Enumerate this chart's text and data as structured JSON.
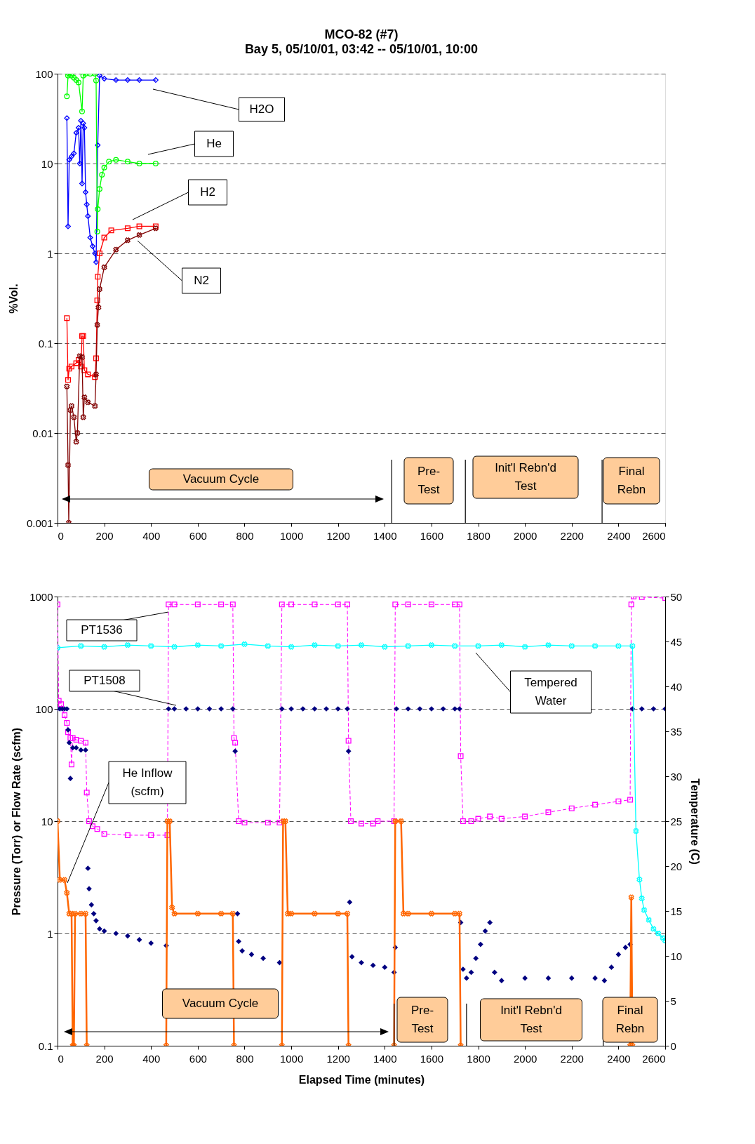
{
  "chart_data": [
    {
      "type": "line",
      "title": "MCO-82 (#7)",
      "subtitle": "Bay 5, 05/10/01, 03:42 -- 05/10/01, 10:00",
      "ylabel": "%Vol.",
      "log": "y",
      "grid": "y",
      "xlim": [
        0,
        2600
      ],
      "xticks": [
        0,
        200,
        400,
        600,
        800,
        1000,
        1200,
        1400,
        1600,
        1800,
        2000,
        2200,
        2400,
        2600
      ],
      "ylim": [
        0.001,
        100
      ],
      "yticks": [
        0.001,
        0.01,
        0.1,
        1,
        10,
        100
      ],
      "series": [
        {
          "name": "H2O",
          "color": "#0000ff",
          "marker": "diamond",
          "x": [
            40,
            45,
            50,
            60,
            70,
            80,
            90,
            95,
            100,
            105,
            110,
            115,
            120,
            125,
            130,
            140,
            150,
            160,
            165,
            172,
            180,
            200,
            250,
            300,
            350,
            420
          ],
          "values": [
            32,
            2.0,
            11,
            12,
            13,
            22,
            25,
            10,
            30,
            6,
            28,
            25,
            4.8,
            3.5,
            2.6,
            1.5,
            1.2,
            1.0,
            0.8,
            16,
            95,
            88,
            85,
            85,
            85,
            85
          ]
        },
        {
          "name": "He",
          "color": "#00ff00",
          "marker": "circle",
          "x": [
            40,
            45,
            50,
            60,
            70,
            80,
            90,
            105,
            110,
            120,
            140,
            160,
            165,
            170,
            172,
            180,
            190,
            200,
            220,
            250,
            300,
            350,
            420
          ],
          "values": [
            56,
            95,
            100,
            95,
            90,
            85,
            80,
            38,
            95,
            100,
            100,
            100,
            84,
            1.75,
            3.1,
            5.2,
            7.5,
            9,
            10.5,
            11,
            10.5,
            10,
            10
          ]
        },
        {
          "name": "H2",
          "color": "#ff0000",
          "marker": "square",
          "x": [
            40,
            45,
            50,
            60,
            80,
            90,
            100,
            105,
            110,
            115,
            130,
            160,
            165,
            170,
            172,
            180,
            200,
            230,
            300,
            350,
            420
          ],
          "values": [
            0.19,
            0.039,
            0.052,
            0.055,
            0.06,
            0.065,
            0.055,
            0.12,
            0.12,
            0.05,
            0.045,
            0.042,
            0.068,
            0.3,
            0.55,
            1.0,
            1.5,
            1.8,
            1.9,
            2.0,
            2.0
          ]
        },
        {
          "name": "N2",
          "color": "#800000",
          "marker": "cross",
          "x": [
            40,
            45,
            48,
            55,
            60,
            70,
            80,
            85,
            95,
            105,
            110,
            115,
            130,
            160,
            165,
            170,
            175,
            180,
            200,
            250,
            300,
            350,
            420
          ],
          "values": [
            0.033,
            0.0044,
            0.001,
            0.018,
            0.02,
            0.015,
            0.008,
            0.01,
            0.072,
            0.07,
            0.015,
            0.025,
            0.022,
            0.02,
            0.045,
            0.16,
            0.25,
            0.4,
            0.7,
            1.1,
            1.4,
            1.6,
            1.9
          ]
        }
      ],
      "ref_lines": [
        {
          "axis": "x",
          "value": 1430
        },
        {
          "axis": "x",
          "value": 1745
        },
        {
          "axis": "x",
          "value": 2330
        }
      ],
      "annotations": [
        "Vacuum Cycle",
        "Pre-\nTest",
        "Init'l Rebn'd\nTest",
        "Final\nRebn"
      ]
    },
    {
      "type": "line",
      "xlabel": "Elapsed Time (minutes)",
      "ylabel": "Pressure (Torr) or Flow Rate (scfm)",
      "y2label": "Temperature (C)",
      "log": "y",
      "grid": "y",
      "xlim": [
        0,
        2600
      ],
      "xticks": [
        0,
        200,
        400,
        600,
        800,
        1000,
        1200,
        1400,
        1600,
        1800,
        2000,
        2200,
        2400,
        2600
      ],
      "ylim": [
        0.1,
        1000
      ],
      "yticks": [
        0.1,
        1,
        10,
        100,
        1000
      ],
      "y2lim": [
        0,
        50
      ],
      "y2ticks": [
        0,
        5,
        10,
        15,
        20,
        25,
        30,
        35,
        40,
        45,
        50
      ],
      "series": [
        {
          "name": "PT1536",
          "color": "#ff00ff",
          "marker": "square",
          "line_style": "dashed",
          "x": [
            0,
            5,
            15,
            30,
            40,
            45,
            55,
            60,
            65,
            80,
            100,
            120,
            125,
            135,
            150,
            170,
            200,
            300,
            400,
            470,
            475,
            500,
            600,
            700,
            750,
            755,
            760,
            775,
            800,
            900,
            950,
            960,
            1000,
            1100,
            1200,
            1240,
            1245,
            1255,
            1300,
            1350,
            1370,
            1440,
            1445,
            1500,
            1600,
            1700,
            1720,
            1725,
            1735,
            1770,
            1800,
            1850,
            1900,
            2000,
            2100,
            2200,
            2300,
            2400,
            2450,
            2455,
            2465,
            2500,
            2600
          ],
          "values": [
            850,
            118,
            110,
            88,
            75,
            62,
            55,
            32,
            55,
            53,
            52,
            50,
            18,
            10,
            9,
            8.5,
            7.7,
            7.5,
            7.5,
            7.5,
            850,
            850,
            850,
            850,
            850,
            55,
            50,
            10,
            9.7,
            9.7,
            9.7,
            850,
            850,
            850,
            850,
            850,
            52,
            10,
            9.5,
            9.5,
            10,
            10,
            850,
            850,
            850,
            850,
            850,
            38,
            10,
            10,
            10.5,
            11,
            10.5,
            11,
            12,
            13,
            14,
            15,
            15.5,
            850,
            1000,
            990,
            970
          ]
        },
        {
          "name": "PT1508",
          "type": "scatter",
          "color": "#000080",
          "marker": "diamond",
          "x": [
            0,
            10,
            20,
            30,
            40,
            45,
            50,
            55,
            65,
            80,
            100,
            120,
            130,
            135,
            145,
            155,
            165,
            180,
            200,
            250,
            300,
            350,
            400,
            465,
            475,
            500,
            550,
            600,
            650,
            700,
            750,
            760,
            770,
            775,
            790,
            830,
            880,
            950,
            960,
            1000,
            1050,
            1100,
            1150,
            1200,
            1240,
            1245,
            1250,
            1260,
            1300,
            1350,
            1400,
            1440,
            1445,
            1450,
            1500,
            1550,
            1600,
            1650,
            1700,
            1720,
            1725,
            1735,
            1750,
            1770,
            1790,
            1810,
            1830,
            1850,
            1870,
            1900,
            2000,
            2100,
            2200,
            2300,
            2340,
            2370,
            2400,
            2430,
            2450,
            2460,
            2500,
            2550,
            2600
          ],
          "values": [
            100,
            100,
            100,
            100,
            100,
            65,
            50,
            24,
            45,
            45,
            43,
            43,
            3.8,
            2.5,
            1.8,
            1.5,
            1.3,
            1.1,
            1.05,
            1.0,
            0.95,
            0.88,
            0.82,
            0.78,
            100,
            100,
            100,
            100,
            100,
            100,
            100,
            42,
            1.5,
            0.85,
            0.7,
            0.65,
            0.6,
            0.55,
            100,
            100,
            100,
            100,
            100,
            100,
            100,
            42,
            1.9,
            0.62,
            0.55,
            0.52,
            0.5,
            0.45,
            0.75,
            100,
            100,
            100,
            100,
            100,
            100,
            100,
            1.25,
            0.48,
            0.4,
            0.45,
            0.6,
            0.8,
            1.05,
            1.25,
            0.45,
            0.38,
            0.4,
            0.4,
            0.4,
            0.4,
            0.38,
            0.5,
            0.65,
            0.75,
            0.8,
            100,
            100,
            100,
            100
          ]
        },
        {
          "name": "Tempered\nWater",
          "axis": "y2",
          "color": "#00ffff",
          "marker": "cross",
          "x": [
            0,
            100,
            200,
            300,
            400,
            500,
            600,
            700,
            800,
            900,
            1000,
            1100,
            1200,
            1300,
            1400,
            1500,
            1600,
            1700,
            1800,
            1900,
            2000,
            2100,
            2200,
            2300,
            2400,
            2460,
            2475,
            2490,
            2500,
            2510,
            2530,
            2550,
            2570,
            2590,
            2600
          ],
          "values": [
            44.3,
            44.5,
            44.4,
            44.6,
            44.5,
            44.4,
            44.6,
            44.5,
            44.7,
            44.5,
            44.4,
            44.6,
            44.5,
            44.6,
            44.4,
            44.5,
            44.6,
            44.5,
            44.5,
            44.6,
            44.4,
            44.6,
            44.5,
            44.5,
            44.5,
            44.5,
            23.9,
            18.5,
            16.4,
            15.1,
            14,
            13,
            12.5,
            12,
            11.7
          ]
        },
        {
          "name": "He Inflow\n(scfm)",
          "color": "#ff6600",
          "marker": "cross",
          "x": [
            0,
            10,
            30,
            40,
            50,
            60,
            65,
            70,
            75,
            100,
            120,
            125,
            130,
            465,
            470,
            480,
            490,
            500,
            600,
            700,
            750,
            755,
            760,
            960,
            965,
            975,
            985,
            1000,
            1100,
            1200,
            1240,
            1245,
            1250,
            1440,
            1445,
            1470,
            1480,
            1500,
            1600,
            1700,
            1720,
            1725,
            1730,
            2450,
            2455,
            2460
          ],
          "values": [
            10,
            3,
            3,
            2.3,
            1.5,
            1.5,
            0.1,
            0.1,
            1.5,
            1.5,
            1.5,
            0.1,
            null,
            0.1,
            10,
            10,
            1.7,
            1.5,
            1.5,
            1.5,
            1.5,
            0.1,
            null,
            0.1,
            10,
            10,
            1.5,
            1.5,
            1.5,
            1.5,
            1.5,
            0.1,
            null,
            0.1,
            10,
            10,
            1.5,
            1.5,
            1.5,
            1.5,
            1.5,
            0.1,
            null,
            0.1,
            2.1,
            0.1
          ]
        }
      ],
      "ref_lines": [
        {
          "axis": "x",
          "value": 1440
        },
        {
          "axis": "x",
          "value": 1750
        },
        {
          "axis": "x",
          "value": 2335
        }
      ],
      "annotations": [
        "Vacuum Cycle",
        "Pre-\nTest",
        "Init'l Rebn'd\nTest",
        "Final\nRebn"
      ]
    }
  ]
}
